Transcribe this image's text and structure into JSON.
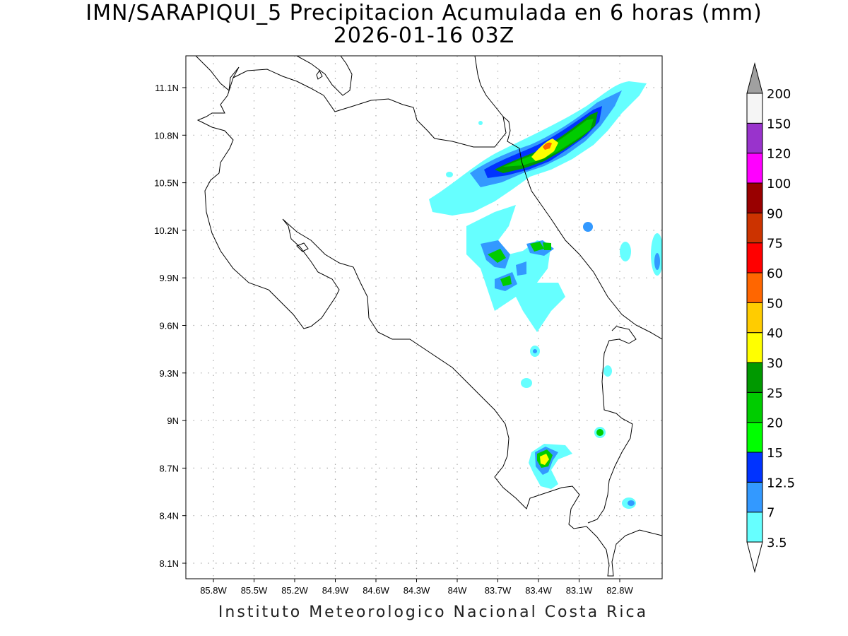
{
  "title_line1": "IMN/SARAPIQUI_5 Precipitacion Acumulada en 6 horas (mm)",
  "title_line2": "2026-01-16 03Z",
  "footer": "Instituto Meteorologico Nacional Costa Rica",
  "map": {
    "lon_range": [
      -86.0,
      -83.0
    ],
    "lat_range": [
      8.0,
      11.2
    ],
    "lat_ticks": [
      "11.1N",
      "10.8N",
      "10.5N",
      "10.2N",
      "9.9N",
      "9.6N",
      "9.3N",
      "9N",
      "8.7N",
      "8.4N",
      "8.1N"
    ],
    "lon_ticks": [
      "85.8W",
      "85.5W",
      "85.2W",
      "84.9W",
      "84.6W",
      "84.3W",
      "84W",
      "83.7W",
      "83.4W",
      "83.1W",
      "82.8W"
    ],
    "grid": true
  },
  "colorbar": {
    "labels": [
      "3.5",
      "7",
      "12.5",
      "15",
      "20",
      "25",
      "30",
      "40",
      "50",
      "60",
      "75",
      "90",
      "100",
      "120",
      "150",
      "200"
    ],
    "colors": [
      "#66ffff",
      "#3399ff",
      "#0033ff",
      "#00ff00",
      "#00cc00",
      "#009900",
      "#ffff00",
      "#ffcc00",
      "#ff6600",
      "#ff0000",
      "#cc3300",
      "#990000",
      "#ff00ff",
      "#9933cc",
      "#f5f5f5"
    ],
    "top_arrow_color": "#a0a0a0",
    "bottom_arrow_color": "#ffffff"
  },
  "precip_cells": [
    {
      "lon": -83.45,
      "lat": 10.72,
      "level": 8
    },
    {
      "lon": -83.55,
      "lat": 10.66,
      "level": 6
    },
    {
      "lon": -83.25,
      "lat": 10.85,
      "level": 5
    },
    {
      "lon": -83.75,
      "lat": 10.6,
      "level": 4
    },
    {
      "lon": -83.4,
      "lat": 8.77,
      "level": 7
    },
    {
      "lon": -83.7,
      "lat": 9.87,
      "level": 4
    },
    {
      "lon": -83.72,
      "lat": 10.05,
      "level": 4
    },
    {
      "lon": -83.39,
      "lat": 10.12,
      "level": 4
    },
    {
      "lon": -82.95,
      "lat": 8.9,
      "level": 4
    },
    {
      "lon": -82.72,
      "lat": 8.47,
      "level": 3
    },
    {
      "lon": -83.15,
      "lat": 10.22,
      "level": 2
    },
    {
      "lon": -82.55,
      "lat": 10.0,
      "level": 2
    }
  ]
}
